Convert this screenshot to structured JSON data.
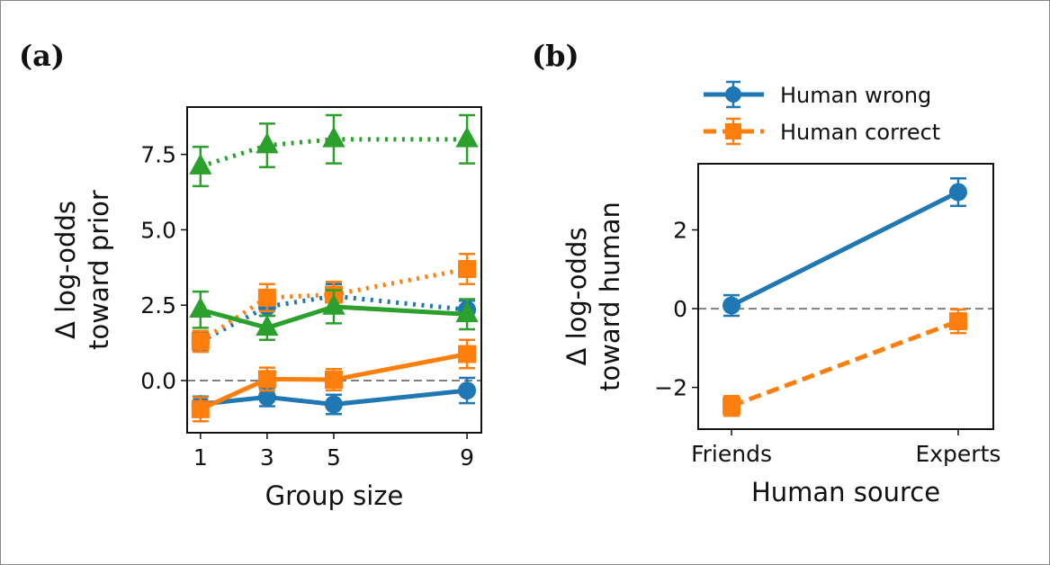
{
  "chart_data": [
    {
      "panel_label": "(a)",
      "type": "line",
      "xlabel": "Group size",
      "ylabel": [
        "Δ log-odds",
        "toward prior"
      ],
      "x": [
        1,
        3,
        5,
        9
      ],
      "xticks": [
        "1",
        "3",
        "5",
        "9"
      ],
      "yticks": [
        "0.0",
        "2.5",
        "5.0",
        "7.5"
      ],
      "ytick_values": [
        0,
        2.5,
        5,
        7.5
      ],
      "xlim": [
        0.6,
        9.43
      ],
      "ylim": [
        -1.73,
        9.07
      ],
      "reference_line_y": 0,
      "grid": false,
      "series": [
        {
          "color": "#2ca02c",
          "marker": "triangle",
          "linestyle": "dotted",
          "values": [
            7.1,
            7.8,
            8.0,
            8.0
          ],
          "errors": [
            0.65,
            0.72,
            0.8,
            0.8
          ]
        },
        {
          "color": "#1f77b4",
          "marker": "circle",
          "linestyle": "dotted",
          "values": [
            1.3,
            2.45,
            2.8,
            2.35
          ],
          "errors": [
            0.3,
            0.3,
            0.4,
            0.3
          ]
        },
        {
          "color": "#ff7f0e",
          "marker": "square",
          "linestyle": "dotted",
          "values": [
            1.3,
            2.75,
            2.85,
            3.7
          ],
          "errors": [
            0.35,
            0.45,
            0.43,
            0.5
          ]
        },
        {
          "color": "#2ca02c",
          "marker": "triangle",
          "linestyle": "solid",
          "values": [
            2.35,
            1.75,
            2.45,
            2.2
          ],
          "errors": [
            0.6,
            0.4,
            0.55,
            0.5
          ]
        },
        {
          "color": "#1f77b4",
          "marker": "circle",
          "linestyle": "solid",
          "values": [
            -0.78,
            -0.55,
            -0.79,
            -0.33
          ],
          "errors": [
            0.25,
            0.3,
            0.32,
            0.42
          ]
        },
        {
          "color": "#ff7f0e",
          "marker": "square",
          "linestyle": "solid",
          "values": [
            -0.95,
            0.05,
            0.03,
            0.88
          ],
          "errors": [
            0.4,
            0.38,
            0.35,
            0.47
          ]
        }
      ]
    },
    {
      "panel_label": "(b)",
      "type": "line",
      "xlabel": "Human source",
      "ylabel": [
        "Δ log-odds",
        "toward human"
      ],
      "categories": [
        "Friends",
        "Experts"
      ],
      "yticks": [
        "−2",
        "0",
        "2"
      ],
      "ytick_values": [
        -2,
        0,
        2
      ],
      "xlim": [
        -0.147,
        1.155
      ],
      "ylim": [
        -3.06,
        3.68
      ],
      "reference_line_y": 0,
      "grid": false,
      "legend_position": "top (above axes)",
      "series": [
        {
          "name": "Human wrong",
          "color": "#1f77b4",
          "marker": "circle",
          "linestyle": "solid",
          "values": [
            0.08,
            2.96
          ],
          "errors": [
            0.26,
            0.35
          ]
        },
        {
          "name": "Human correct",
          "color": "#ff7f0e",
          "marker": "square",
          "linestyle": "dashed",
          "values": [
            -2.47,
            -0.32
          ],
          "errors": [
            0.25,
            0.3
          ]
        }
      ]
    }
  ]
}
